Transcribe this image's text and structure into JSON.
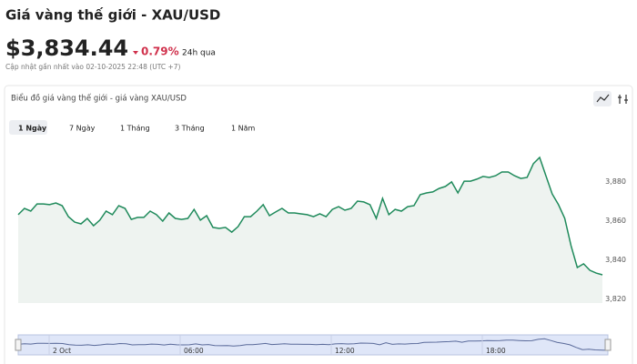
{
  "header": {
    "title": "Giá vàng thế giới - XAU/USD",
    "price": "$3,834.44",
    "change": "0.79%",
    "period": "24h qua",
    "updated": "Cập nhật gần nhất vào 02-10-2025 22:48 (UTC +7)"
  },
  "card": {
    "title": "Biểu đồ giá vàng thế giới - giá vàng XAU/USD",
    "tabs": [
      "1 Ngày",
      "7 Ngày",
      "1 Tháng",
      "3 Tháng",
      "1 Năm"
    ],
    "active_tab": 0
  },
  "chart_data": {
    "type": "area",
    "color": "#1f8a5b",
    "fill": "#eef3f0",
    "values": [
      3863.1,
      3866.3,
      3864.9,
      3868.6,
      3868.6,
      3868.2,
      3869.1,
      3867.7,
      3862.1,
      3859.3,
      3858.4,
      3861.2,
      3857.5,
      3860.3,
      3864.9,
      3863.1,
      3867.7,
      3866.3,
      3860.7,
      3861.7,
      3861.7,
      3864.9,
      3863.1,
      3859.8,
      3864.0,
      3861.2,
      3860.7,
      3861.2,
      3865.8,
      3860.3,
      3862.6,
      3856.6,
      3856.1,
      3856.6,
      3854.2,
      3857.0,
      3862.1,
      3862.1,
      3864.9,
      3868.2,
      3862.6,
      3864.5,
      3866.3,
      3864.0,
      3864.0,
      3863.5,
      3863.1,
      3862.1,
      3863.5,
      3862.1,
      3865.8,
      3867.2,
      3865.4,
      3866.3,
      3870.0,
      3869.6,
      3868.2,
      3861.2,
      3871.4,
      3863.1,
      3865.8,
      3864.9,
      3867.2,
      3867.7,
      3873.3,
      3874.2,
      3874.7,
      3876.5,
      3877.5,
      3879.8,
      3874.2,
      3880.2,
      3880.2,
      3881.2,
      3882.6,
      3882.1,
      3883.0,
      3884.9,
      3884.9,
      3883.0,
      3881.6,
      3882.1,
      3889.1,
      3892.3,
      3883.0,
      3873.7,
      3868.2,
      3861.2,
      3847.3,
      3836.1,
      3838.0,
      3834.7,
      3833.3,
      3832.4
    ],
    "ylim": [
      3818,
      3903
    ],
    "yticks": [
      {
        "value": 3820,
        "label": "3,820"
      },
      {
        "value": 3840,
        "label": "3,840"
      },
      {
        "value": 3860,
        "label": "3,860"
      },
      {
        "value": 3880,
        "label": "3,880"
      }
    ],
    "navigator_labels": [
      "2 Oct",
      "06:00",
      "12:00",
      "18:00"
    ]
  }
}
